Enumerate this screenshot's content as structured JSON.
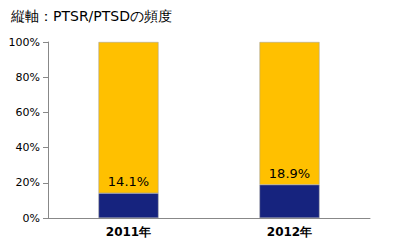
{
  "chart_data": {
    "type": "bar",
    "title": "縦軸：PTSR/PTSDの頻度",
    "categories": [
      "2011年",
      "2012年"
    ],
    "stacked": true,
    "grid": false,
    "series": [
      {
        "color": "#16237e",
        "values": [
          14.1,
          18.9
        ],
        "data_labels": true,
        "value_labels": [
          "14.1%",
          "18.9%"
        ]
      },
      {
        "color": "#ffc000",
        "values": [
          85.9,
          81.1
        ],
        "data_labels": false
      }
    ],
    "ylim": [
      0,
      100
    ],
    "yticks": [
      {
        "value": 0,
        "label": "0%"
      },
      {
        "value": 20,
        "label": "20%"
      },
      {
        "value": 40,
        "label": "40%"
      },
      {
        "value": 60,
        "label": "60%"
      },
      {
        "value": 80,
        "label": "80%"
      },
      {
        "value": 100,
        "label": "100%"
      }
    ]
  }
}
